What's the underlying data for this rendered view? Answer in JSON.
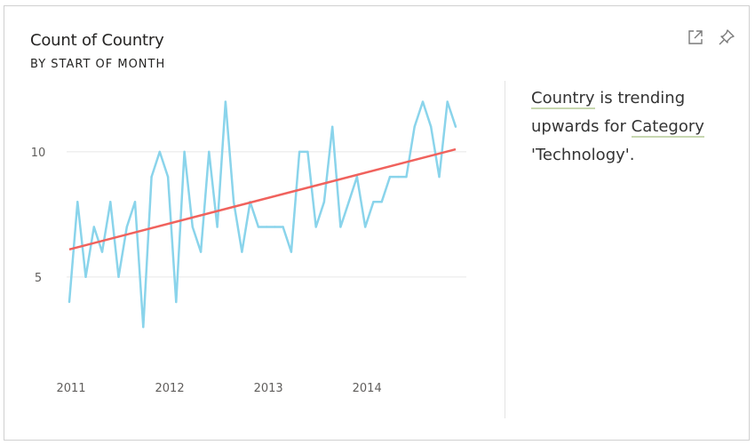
{
  "card": {
    "title": "Count of Country",
    "subtitle": "BY START OF MONTH"
  },
  "icons": {
    "expand": "expand-icon",
    "pin": "pin-icon"
  },
  "insight": {
    "field": "Country",
    "text_1": " is trending upwards for ",
    "category": "Category",
    "text_2": " 'Technology'."
  },
  "colors": {
    "series": "#8ad4eb",
    "trend": "#f0625d",
    "grid": "#e6e6e6"
  },
  "chart_data": {
    "type": "line",
    "title": "",
    "xlabel": "",
    "ylabel": "",
    "x_ticks": [
      "2011",
      "2012",
      "2013",
      "2014"
    ],
    "y_ticks": [
      5,
      10
    ],
    "ylim": [
      1.8,
      12.8
    ],
    "grid": true,
    "x_start": "2011-01",
    "x_end": "2014-12",
    "series": [
      {
        "values": [
          4,
          8,
          5,
          7,
          6,
          8,
          5,
          7,
          8,
          3,
          9,
          10,
          9,
          4,
          10,
          7,
          6,
          10,
          7,
          12,
          8,
          6,
          8,
          7,
          7,
          7,
          7,
          6,
          10,
          10,
          7,
          8,
          11,
          7,
          8,
          9,
          7,
          8,
          8,
          9,
          9,
          9,
          11,
          12,
          11,
          9,
          12,
          11
        ]
      }
    ],
    "trend_line": {
      "start": 6.1,
      "end": 10.1
    }
  }
}
